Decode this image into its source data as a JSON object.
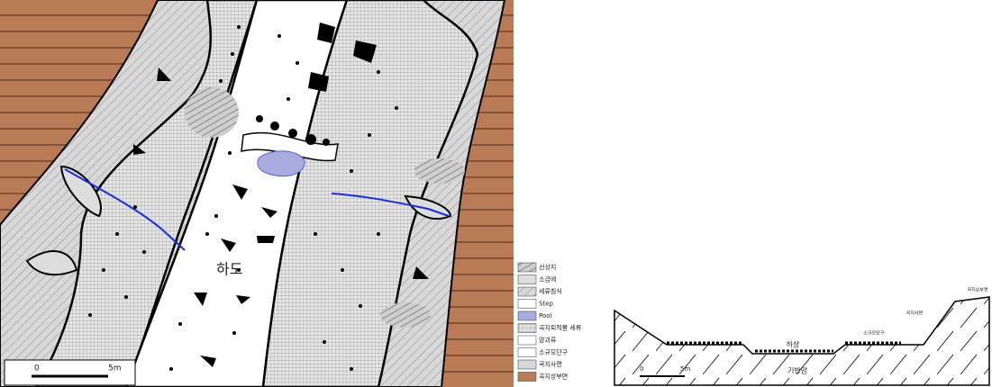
{
  "map": {
    "channel_label": "하도",
    "scale": [
      "0",
      "5m"
    ]
  },
  "legend": [
    "선상지",
    "소금에",
    "세류침식",
    "Step",
    "Pool",
    "곡지퇴적물 세류",
    "암괴류",
    "소규모단구",
    "곡지사면",
    "곡지상부면"
  ],
  "cross_section": {
    "labels": [
      "곡지상부면",
      "곡지사면",
      "소규모단구",
      "하상",
      "기반암"
    ],
    "scale": [
      "0",
      "5m"
    ]
  }
}
